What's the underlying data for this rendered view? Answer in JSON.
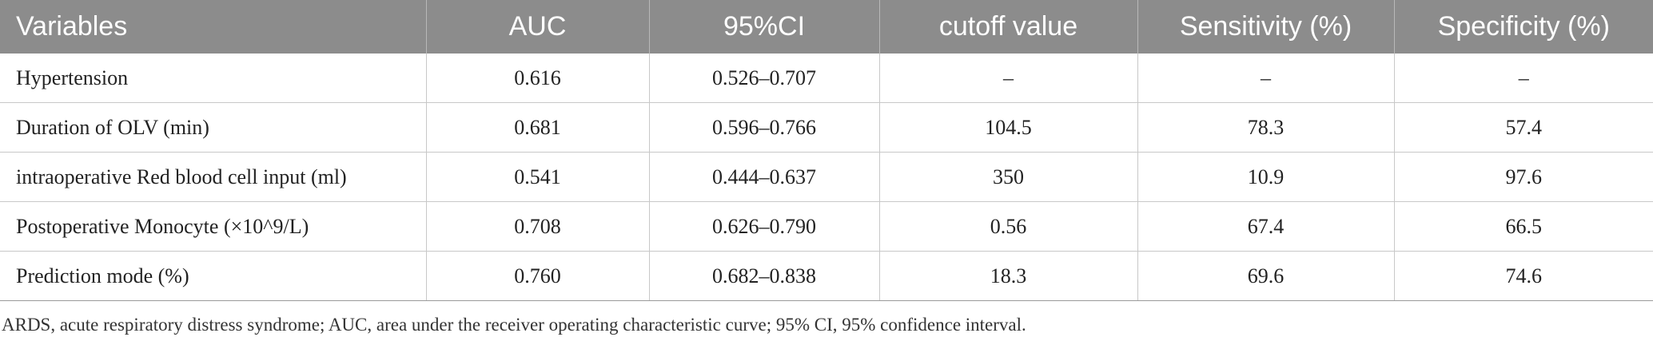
{
  "table": {
    "headers": [
      "Variables",
      "AUC",
      "95%CI",
      "cutoff value",
      "Sensitivity (%)",
      "Specificity (%)"
    ],
    "rows": [
      [
        "Hypertension",
        "0.616",
        "0.526–0.707",
        "–",
        "–",
        "–"
      ],
      [
        "Duration of OLV (min)",
        "0.681",
        "0.596–0.766",
        "104.5",
        "78.3",
        "57.4"
      ],
      [
        "intraoperative Red blood cell input (ml)",
        "0.541",
        "0.444–0.637",
        "350",
        "10.9",
        "97.6"
      ],
      [
        "Postoperative Monocyte (×10^9/L)",
        "0.708",
        "0.626–0.790",
        "0.56",
        "67.4",
        "66.5"
      ],
      [
        "Prediction mode (%)",
        "0.760",
        "0.682–0.838",
        "18.3",
        "69.6",
        "74.6"
      ]
    ]
  },
  "footnote": "ARDS, acute respiratory distress syndrome; AUC, area under the receiver operating characteristic curve; 95% CI, 95% confidence interval.",
  "colors": {
    "header_bg": "#8c8c8c",
    "header_text": "#ffffff",
    "grid_line": "#c8c8c8"
  }
}
